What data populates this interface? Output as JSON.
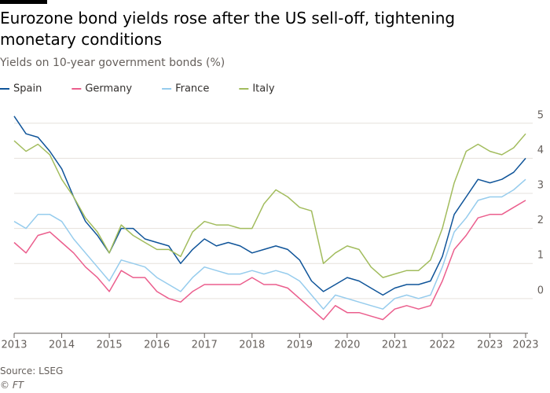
{
  "chart_data": {
    "type": "line",
    "title": "Eurozone bond yields rose after the US sell-off, tightening monetary conditions",
    "subtitle": "Yields on 10-year government bonds (%)",
    "source": "Source: LSEG",
    "credit": "© FT",
    "x": [
      2013,
      2013.25,
      2013.5,
      2013.75,
      2014,
      2014.25,
      2014.5,
      2014.75,
      2015,
      2015.25,
      2015.5,
      2015.75,
      2016,
      2016.25,
      2016.5,
      2016.75,
      2017,
      2017.25,
      2017.5,
      2017.75,
      2018,
      2018.25,
      2018.5,
      2018.75,
      2019,
      2019.25,
      2019.5,
      2019.75,
      2020,
      2020.25,
      2020.5,
      2020.75,
      2021,
      2021.25,
      2021.5,
      2021.75,
      2022,
      2022.25,
      2022.5,
      2022.75,
      2023,
      2023.25,
      2023.5,
      2023.75
    ],
    "series": [
      {
        "name": "Spain",
        "color": "#0f5499",
        "values": [
          5.2,
          4.7,
          4.6,
          4.2,
          3.7,
          2.9,
          2.2,
          1.8,
          1.3,
          2.0,
          2.0,
          1.7,
          1.6,
          1.5,
          1.0,
          1.4,
          1.7,
          1.5,
          1.6,
          1.5,
          1.3,
          1.4,
          1.5,
          1.4,
          1.1,
          0.5,
          0.2,
          0.4,
          0.6,
          0.5,
          0.3,
          0.1,
          0.3,
          0.4,
          0.4,
          0.5,
          1.2,
          2.4,
          2.9,
          3.4,
          3.3,
          3.4,
          3.6,
          4.0
        ]
      },
      {
        "name": "Germany",
        "color": "#eb5e8d",
        "values": [
          1.6,
          1.3,
          1.8,
          1.9,
          1.6,
          1.3,
          0.9,
          0.6,
          0.2,
          0.8,
          0.6,
          0.6,
          0.2,
          0.0,
          -0.1,
          0.2,
          0.4,
          0.4,
          0.4,
          0.4,
          0.6,
          0.4,
          0.4,
          0.3,
          0.0,
          -0.3,
          -0.6,
          -0.2,
          -0.4,
          -0.4,
          -0.5,
          -0.6,
          -0.3,
          -0.2,
          -0.3,
          -0.2,
          0.5,
          1.4,
          1.8,
          2.3,
          2.4,
          2.4,
          2.6,
          2.8
        ]
      },
      {
        "name": "France",
        "color": "#96cced",
        "values": [
          2.2,
          2.0,
          2.4,
          2.4,
          2.2,
          1.7,
          1.3,
          0.9,
          0.5,
          1.1,
          1.0,
          0.9,
          0.6,
          0.4,
          0.2,
          0.6,
          0.9,
          0.8,
          0.7,
          0.7,
          0.8,
          0.7,
          0.8,
          0.7,
          0.5,
          0.1,
          -0.3,
          0.1,
          0.0,
          -0.1,
          -0.2,
          -0.3,
          0.0,
          0.1,
          0.0,
          0.1,
          0.9,
          1.9,
          2.3,
          2.8,
          2.9,
          2.9,
          3.1,
          3.4
        ]
      },
      {
        "name": "Italy",
        "color": "#a2bc5d",
        "values": [
          4.5,
          4.2,
          4.4,
          4.1,
          3.4,
          2.9,
          2.3,
          1.9,
          1.3,
          2.1,
          1.8,
          1.6,
          1.4,
          1.4,
          1.2,
          1.9,
          2.2,
          2.1,
          2.1,
          2.0,
          2.0,
          2.7,
          3.1,
          2.9,
          2.6,
          2.5,
          1.0,
          1.3,
          1.5,
          1.4,
          0.9,
          0.6,
          0.7,
          0.8,
          0.8,
          1.1,
          2.0,
          3.3,
          4.2,
          4.4,
          4.2,
          4.1,
          4.3,
          4.7
        ]
      }
    ],
    "xlim": [
      2013,
      2023.8
    ],
    "xticks": [
      2013,
      2014,
      2015,
      2016,
      2017,
      2018,
      2019,
      2020,
      2021,
      2022,
      2023,
      {
        "value": 2023.75,
        "label": "2023"
      }
    ],
    "ylim": [
      -0.9,
      5.6
    ],
    "yticks": [
      0,
      1,
      2,
      3,
      4,
      5
    ],
    "grid": true
  }
}
